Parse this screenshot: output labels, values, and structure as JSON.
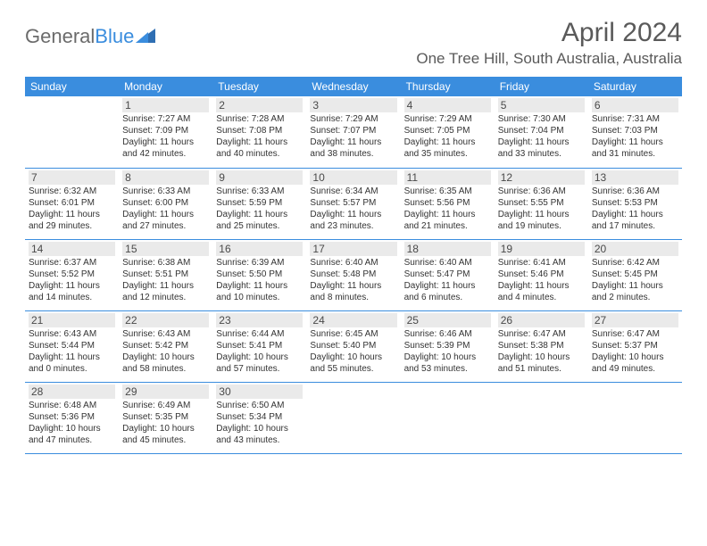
{
  "brand": {
    "text_gray": "General",
    "text_blue": "Blue"
  },
  "title": "April 2024",
  "location": "One Tree Hill, South Australia, Australia",
  "day_headers": [
    "Sunday",
    "Monday",
    "Tuesday",
    "Wednesday",
    "Thursday",
    "Friday",
    "Saturday"
  ],
  "colors": {
    "header_bg": "#3a8dde",
    "header_fg": "#ffffff",
    "daynum_bg": "#eaeaea",
    "border": "#3a8dde",
    "text": "#333333",
    "title_color": "#5a5a5a"
  },
  "weeks": [
    [
      {
        "day": "",
        "sunrise": "",
        "sunset": "",
        "daylight": ""
      },
      {
        "day": "1",
        "sunrise": "Sunrise: 7:27 AM",
        "sunset": "Sunset: 7:09 PM",
        "daylight": "Daylight: 11 hours and 42 minutes."
      },
      {
        "day": "2",
        "sunrise": "Sunrise: 7:28 AM",
        "sunset": "Sunset: 7:08 PM",
        "daylight": "Daylight: 11 hours and 40 minutes."
      },
      {
        "day": "3",
        "sunrise": "Sunrise: 7:29 AM",
        "sunset": "Sunset: 7:07 PM",
        "daylight": "Daylight: 11 hours and 38 minutes."
      },
      {
        "day": "4",
        "sunrise": "Sunrise: 7:29 AM",
        "sunset": "Sunset: 7:05 PM",
        "daylight": "Daylight: 11 hours and 35 minutes."
      },
      {
        "day": "5",
        "sunrise": "Sunrise: 7:30 AM",
        "sunset": "Sunset: 7:04 PM",
        "daylight": "Daylight: 11 hours and 33 minutes."
      },
      {
        "day": "6",
        "sunrise": "Sunrise: 7:31 AM",
        "sunset": "Sunset: 7:03 PM",
        "daylight": "Daylight: 11 hours and 31 minutes."
      }
    ],
    [
      {
        "day": "7",
        "sunrise": "Sunrise: 6:32 AM",
        "sunset": "Sunset: 6:01 PM",
        "daylight": "Daylight: 11 hours and 29 minutes."
      },
      {
        "day": "8",
        "sunrise": "Sunrise: 6:33 AM",
        "sunset": "Sunset: 6:00 PM",
        "daylight": "Daylight: 11 hours and 27 minutes."
      },
      {
        "day": "9",
        "sunrise": "Sunrise: 6:33 AM",
        "sunset": "Sunset: 5:59 PM",
        "daylight": "Daylight: 11 hours and 25 minutes."
      },
      {
        "day": "10",
        "sunrise": "Sunrise: 6:34 AM",
        "sunset": "Sunset: 5:57 PM",
        "daylight": "Daylight: 11 hours and 23 minutes."
      },
      {
        "day": "11",
        "sunrise": "Sunrise: 6:35 AM",
        "sunset": "Sunset: 5:56 PM",
        "daylight": "Daylight: 11 hours and 21 minutes."
      },
      {
        "day": "12",
        "sunrise": "Sunrise: 6:36 AM",
        "sunset": "Sunset: 5:55 PM",
        "daylight": "Daylight: 11 hours and 19 minutes."
      },
      {
        "day": "13",
        "sunrise": "Sunrise: 6:36 AM",
        "sunset": "Sunset: 5:53 PM",
        "daylight": "Daylight: 11 hours and 17 minutes."
      }
    ],
    [
      {
        "day": "14",
        "sunrise": "Sunrise: 6:37 AM",
        "sunset": "Sunset: 5:52 PM",
        "daylight": "Daylight: 11 hours and 14 minutes."
      },
      {
        "day": "15",
        "sunrise": "Sunrise: 6:38 AM",
        "sunset": "Sunset: 5:51 PM",
        "daylight": "Daylight: 11 hours and 12 minutes."
      },
      {
        "day": "16",
        "sunrise": "Sunrise: 6:39 AM",
        "sunset": "Sunset: 5:50 PM",
        "daylight": "Daylight: 11 hours and 10 minutes."
      },
      {
        "day": "17",
        "sunrise": "Sunrise: 6:40 AM",
        "sunset": "Sunset: 5:48 PM",
        "daylight": "Daylight: 11 hours and 8 minutes."
      },
      {
        "day": "18",
        "sunrise": "Sunrise: 6:40 AM",
        "sunset": "Sunset: 5:47 PM",
        "daylight": "Daylight: 11 hours and 6 minutes."
      },
      {
        "day": "19",
        "sunrise": "Sunrise: 6:41 AM",
        "sunset": "Sunset: 5:46 PM",
        "daylight": "Daylight: 11 hours and 4 minutes."
      },
      {
        "day": "20",
        "sunrise": "Sunrise: 6:42 AM",
        "sunset": "Sunset: 5:45 PM",
        "daylight": "Daylight: 11 hours and 2 minutes."
      }
    ],
    [
      {
        "day": "21",
        "sunrise": "Sunrise: 6:43 AM",
        "sunset": "Sunset: 5:44 PM",
        "daylight": "Daylight: 11 hours and 0 minutes."
      },
      {
        "day": "22",
        "sunrise": "Sunrise: 6:43 AM",
        "sunset": "Sunset: 5:42 PM",
        "daylight": "Daylight: 10 hours and 58 minutes."
      },
      {
        "day": "23",
        "sunrise": "Sunrise: 6:44 AM",
        "sunset": "Sunset: 5:41 PM",
        "daylight": "Daylight: 10 hours and 57 minutes."
      },
      {
        "day": "24",
        "sunrise": "Sunrise: 6:45 AM",
        "sunset": "Sunset: 5:40 PM",
        "daylight": "Daylight: 10 hours and 55 minutes."
      },
      {
        "day": "25",
        "sunrise": "Sunrise: 6:46 AM",
        "sunset": "Sunset: 5:39 PM",
        "daylight": "Daylight: 10 hours and 53 minutes."
      },
      {
        "day": "26",
        "sunrise": "Sunrise: 6:47 AM",
        "sunset": "Sunset: 5:38 PM",
        "daylight": "Daylight: 10 hours and 51 minutes."
      },
      {
        "day": "27",
        "sunrise": "Sunrise: 6:47 AM",
        "sunset": "Sunset: 5:37 PM",
        "daylight": "Daylight: 10 hours and 49 minutes."
      }
    ],
    [
      {
        "day": "28",
        "sunrise": "Sunrise: 6:48 AM",
        "sunset": "Sunset: 5:36 PM",
        "daylight": "Daylight: 10 hours and 47 minutes."
      },
      {
        "day": "29",
        "sunrise": "Sunrise: 6:49 AM",
        "sunset": "Sunset: 5:35 PM",
        "daylight": "Daylight: 10 hours and 45 minutes."
      },
      {
        "day": "30",
        "sunrise": "Sunrise: 6:50 AM",
        "sunset": "Sunset: 5:34 PM",
        "daylight": "Daylight: 10 hours and 43 minutes."
      },
      {
        "day": "",
        "sunrise": "",
        "sunset": "",
        "daylight": ""
      },
      {
        "day": "",
        "sunrise": "",
        "sunset": "",
        "daylight": ""
      },
      {
        "day": "",
        "sunrise": "",
        "sunset": "",
        "daylight": ""
      },
      {
        "day": "",
        "sunrise": "",
        "sunset": "",
        "daylight": ""
      }
    ]
  ]
}
